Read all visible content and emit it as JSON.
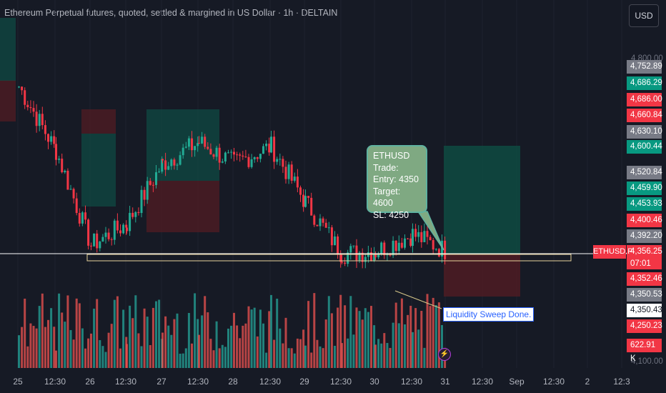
{
  "header": {
    "title": "Ethereum Perpetual futures, quoted, settled & margined in US Dollar · 1h · DELTAIN",
    "currency": "USD"
  },
  "price_axis": {
    "ticks": [
      "4,800.00",
      "4,100.00"
    ],
    "tags": [
      {
        "label": "4,752.89",
        "color": "#787b86"
      },
      {
        "label": "4,686.29",
        "color": "#089981"
      },
      {
        "label": "4,686.00",
        "color": "#f23645"
      },
      {
        "label": "4,660.84",
        "color": "#f23645"
      },
      {
        "label": "4,630.10",
        "color": "#787b86"
      },
      {
        "label": "4,600.44",
        "color": "#089981"
      },
      {
        "label": "4,520.84",
        "color": "#787b86"
      },
      {
        "label": "4,459.90",
        "color": "#089981"
      },
      {
        "label": "4,453.93",
        "color": "#089981"
      },
      {
        "label": "4,400.46",
        "color": "#f23645"
      },
      {
        "label": "4,392.20",
        "color": "#787b86"
      },
      {
        "label": "4,356.25",
        "color": "#f23645"
      },
      {
        "label": "07:01",
        "color": "#f23645"
      },
      {
        "label": "4,352.46",
        "color": "#f23645"
      },
      {
        "label": "4,350.53",
        "color": "#787b86"
      },
      {
        "label": "4,350.43",
        "color": "#ffffff"
      },
      {
        "label": "4,250.23",
        "color": "#f23645"
      },
      {
        "label": "622.91 K",
        "color": "#f23645"
      }
    ]
  },
  "time_axis": {
    "labels": [
      "25",
      "12:30",
      "26",
      "12:30",
      "27",
      "12:30",
      "28",
      "12:30",
      "29",
      "12:30",
      "30",
      "12:30",
      "31",
      "12:30",
      "Sep",
      "12:30",
      "2",
      "12:3"
    ]
  },
  "annotations": {
    "trade_note": "ETHUSD Trade:\nEntry: 4350\nTarget: 4600\nSL: 4250",
    "sweep_note": "Liquidity Sweep Done.",
    "symbol_tag": "ETHUSD.P",
    "bolt_icon": "lightning-icon"
  },
  "colors": {
    "up": "#22ab94",
    "down": "#f23645",
    "volume_up": "#26a69a",
    "volume_down": "#ef5350",
    "background": "#161a25",
    "profit_zone": "#0e4d44",
    "loss_zone": "#4d1c23",
    "support_line": "#e7d39a"
  },
  "chart_data": {
    "type": "candlestick",
    "title": "Ethereum Perpetual futures, quoted, settled & margined in US Dollar · 1h · DELTAIN",
    "x": [
      "25",
      "12:30",
      "26",
      "12:30",
      "27",
      "12:30",
      "28",
      "12:30",
      "29",
      "12:30",
      "30",
      "12:30",
      "31"
    ],
    "close_path": [
      [
        "25",
        4740
      ],
      [
        "12:30",
        4590
      ],
      [
        "26",
        4370
      ],
      [
        "12:30",
        4420
      ],
      [
        "27",
        4560
      ],
      [
        "12:30",
        4610
      ],
      [
        "28",
        4560
      ],
      [
        "12:30",
        4600
      ],
      [
        "29",
        4470
      ],
      [
        "12:30",
        4350
      ],
      [
        "30",
        4355
      ],
      [
        "12:30",
        4395
      ],
      [
        "31",
        4356.25
      ]
    ],
    "trade": {
      "entry": 4350,
      "target": 4600,
      "stop_loss": 4250
    },
    "last_price": 4356.25,
    "ylim": [
      4100,
      4800
    ],
    "volume_last": "622.91 K"
  }
}
